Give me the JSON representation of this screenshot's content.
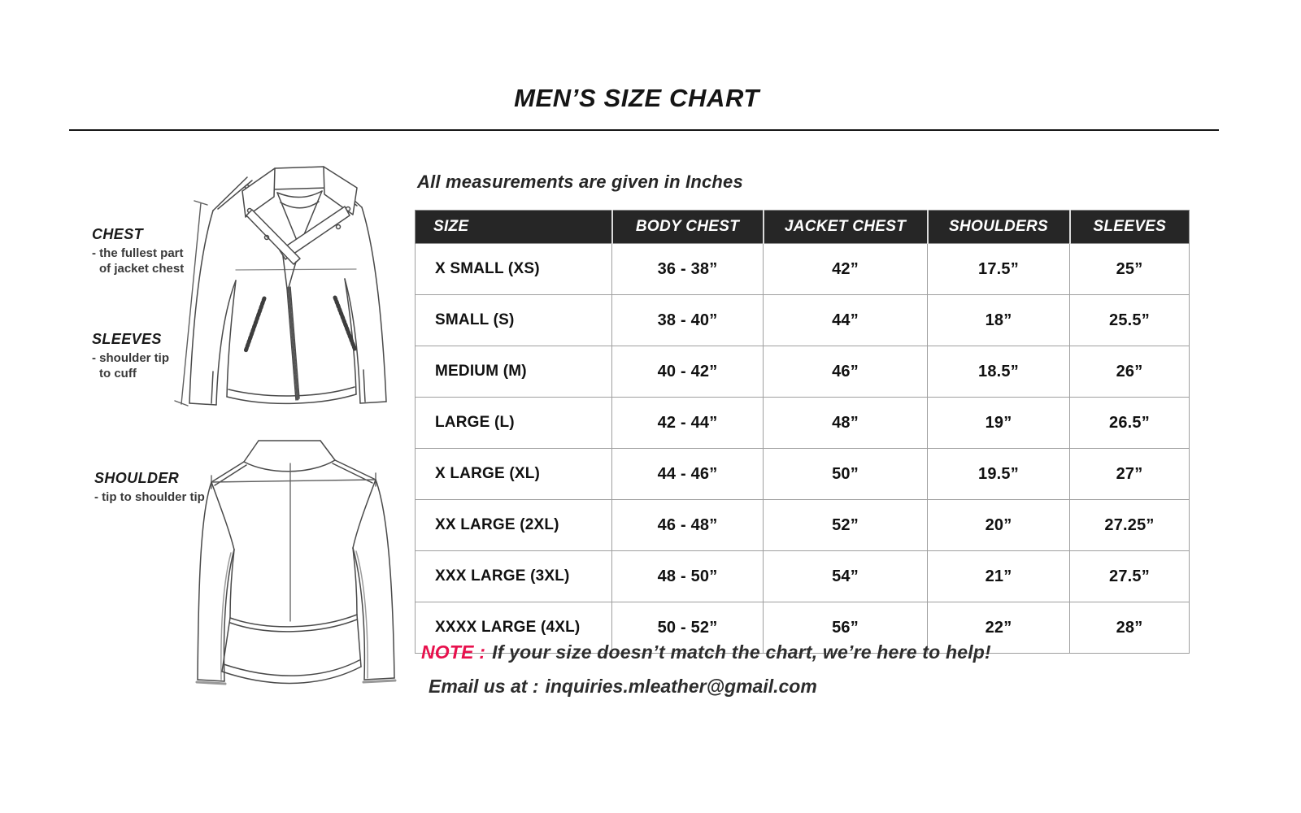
{
  "title": "MEN’S SIZE CHART",
  "units_note": "All measurements are given in Inches",
  "chart_data": {
    "type": "table",
    "title": "MEN’S SIZE CHART",
    "unit_note": "All measurements are given in Inches",
    "columns": [
      "SIZE",
      "BODY CHEST",
      "JACKET CHEST",
      "SHOULDERS",
      "SLEEVES"
    ],
    "rows": [
      [
        "X SMALL (XS)",
        "36 - 38”",
        "42”",
        "17.5”",
        "25”"
      ],
      [
        "SMALL (S)",
        "38 - 40”",
        "44”",
        "18”",
        "25.5”"
      ],
      [
        "MEDIUM (M)",
        "40 - 42”",
        "46”",
        "18.5”",
        "26”"
      ],
      [
        "LARGE (L)",
        "42 - 44”",
        "48”",
        "19”",
        "26.5”"
      ],
      [
        "X LARGE (XL)",
        "44 - 46”",
        "50”",
        "19.5”",
        "27”"
      ],
      [
        "XX LARGE (2XL)",
        "46 - 48”",
        "52”",
        "20”",
        "27.25”"
      ],
      [
        "XXX LARGE (3XL)",
        "48 - 50”",
        "54”",
        "21”",
        "27.5”"
      ],
      [
        "XXXX LARGE (4XL)",
        "50 - 52”",
        "56”",
        "22”",
        "28”"
      ]
    ]
  },
  "figure_labels": {
    "chest": {
      "title": "CHEST",
      "lines": [
        "- the fullest part",
        "of jacket chest"
      ]
    },
    "sleeves": {
      "title": "SLEEVES",
      "lines": [
        "- shoulder tip",
        "to cuff"
      ]
    },
    "shoulder": {
      "title": "SHOULDER",
      "lines": [
        "- tip to shoulder tip"
      ]
    }
  },
  "note": {
    "label": "NOTE :",
    "text": "If your size doesn’t match the chart, we’re here to help!",
    "email_label": "Email us at :",
    "email_address": "inquiries.mleather@gmail.com"
  },
  "colors": {
    "header_bg": "#262626",
    "header_text": "#ffffff",
    "note_red": "#e8114d",
    "grid": "#9f9f9f",
    "ink": "#1c1c1c"
  }
}
